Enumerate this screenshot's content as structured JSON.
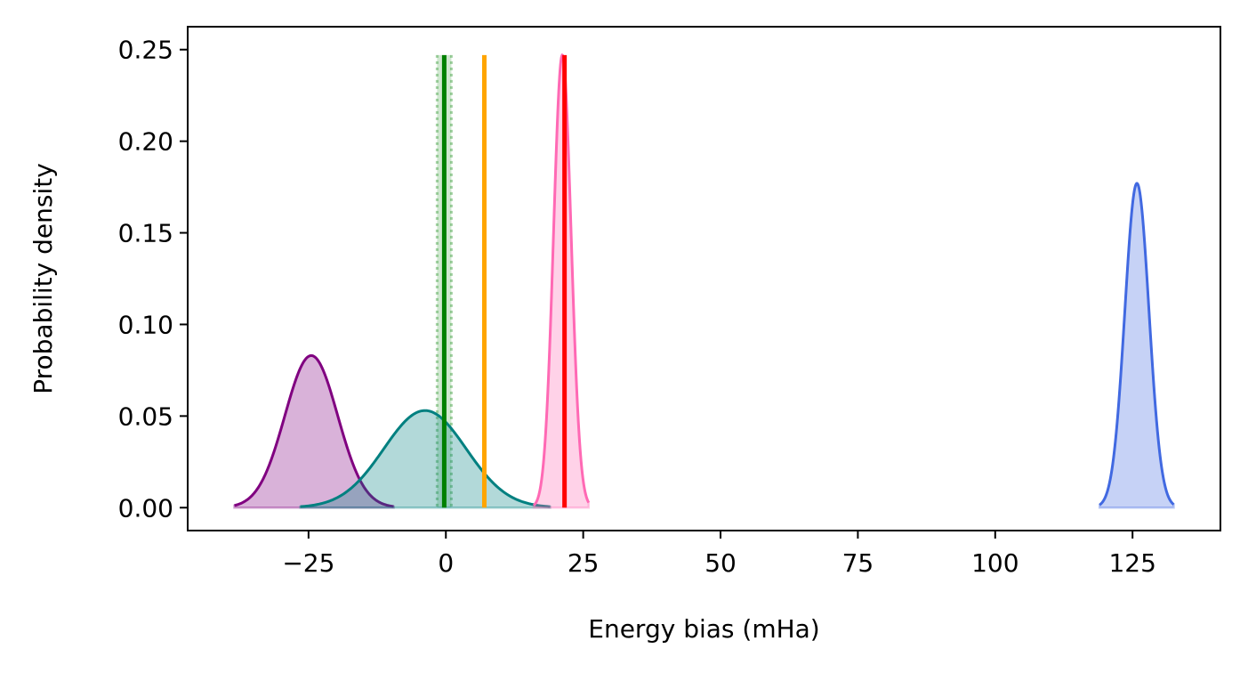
{
  "chart_data": {
    "type": "area",
    "xlabel": "Energy bias (mHa)",
    "ylabel": "Probability density",
    "xlim": [
      -47,
      141
    ],
    "ylim": [
      -0.0125,
      0.2625
    ],
    "x_ticks": [
      -25,
      0,
      25,
      50,
      75,
      100,
      125
    ],
    "x_tick_labels": [
      "−25",
      "0",
      "25",
      "50",
      "75",
      "100",
      "125"
    ],
    "y_ticks": [
      0.0,
      0.05,
      0.1,
      0.15,
      0.2,
      0.25
    ],
    "y_tick_labels": [
      "0.00",
      "0.05",
      "0.10",
      "0.15",
      "0.20",
      "0.25"
    ],
    "grid": false,
    "series": [
      {
        "kind": "gaussian",
        "mean": -24.5,
        "peak": 0.083,
        "sigma": 4.8,
        "x_range": [
          -38.5,
          -9.5
        ],
        "color": "#800080",
        "fill": "#800080",
        "fill_opacity": 0.3
      },
      {
        "kind": "gaussian",
        "mean": -3.8,
        "peak": 0.053,
        "sigma": 7.5,
        "x_range": [
          -26.5,
          19.0
        ],
        "color": "#008080",
        "fill": "#008080",
        "fill_opacity": 0.3
      },
      {
        "kind": "gaussian",
        "mean": 21.2,
        "peak": 0.247,
        "sigma": 1.6,
        "x_range": [
          16.0,
          26.0
        ],
        "color": "#ff69b4",
        "fill": "#ff69b4",
        "fill_opacity": 0.3
      },
      {
        "kind": "gaussian",
        "mean": 125.8,
        "peak": 0.177,
        "sigma": 2.2,
        "x_range": [
          119.0,
          132.5
        ],
        "color": "#4169e1",
        "fill": "#4169e1",
        "fill_opacity": 0.3
      }
    ],
    "vertical_lines": [
      {
        "x": -0.3,
        "y_range": [
          0,
          0.247
        ],
        "color": "#008000",
        "style": "solid"
      },
      {
        "x": 7.0,
        "y_range": [
          0,
          0.247
        ],
        "color": "#ffa500",
        "style": "solid"
      },
      {
        "x": 21.6,
        "y_range": [
          0,
          0.247
        ],
        "color": "#ff0000",
        "style": "solid"
      }
    ],
    "vertical_bands": [
      {
        "x_range": [
          -1.6,
          1.0
        ],
        "y_range": [
          0,
          0.247
        ],
        "color": "#008000",
        "opacity": 0.18,
        "edge_style": "dotted"
      }
    ]
  }
}
